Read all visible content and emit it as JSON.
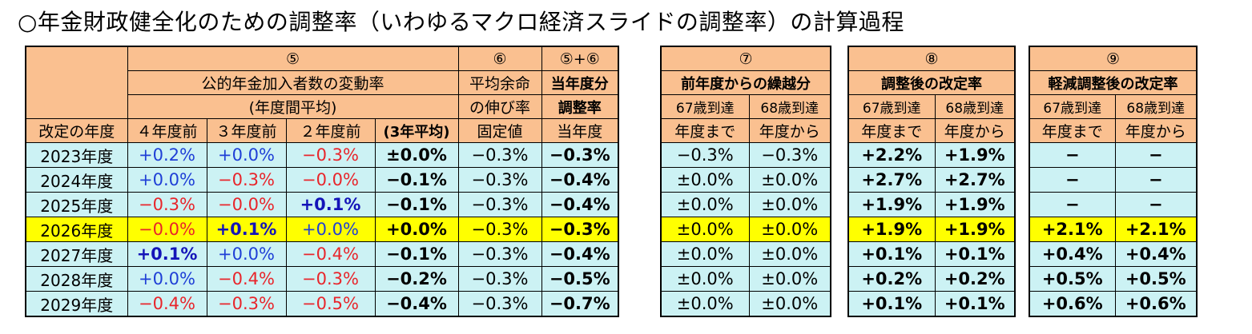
{
  "title": "○年金財政健全化のための調整率（いわゆるマクロ経済スライドの調整率）の計算過程",
  "header": {
    "year_col": "改定の年度",
    "c5": {
      "num": "⑤",
      "line1": "公的年金加入者数の変動率",
      "line2": "(年度間平均)",
      "sub": [
        "４年度前",
        "３年度前",
        "２年度前",
        "(3年平均)"
      ]
    },
    "c6": {
      "num": "⑥",
      "line1": "平均余命",
      "line2": "の伸び率",
      "sub": "固定値"
    },
    "c56": {
      "num": "⑤+⑥",
      "line1": "当年度分",
      "line2": "調整率",
      "sub": "当年度"
    },
    "c7": {
      "num": "⑦",
      "line1": "前年度からの繰越分",
      "sub_top": [
        "67歳到達",
        "68歳到達"
      ],
      "sub_bottom": [
        "年度まで",
        "年度から"
      ]
    },
    "c8": {
      "num": "⑧",
      "line1": "調整後の改定率",
      "sub_top": [
        "67歳到達",
        "68歳到達"
      ],
      "sub_bottom": [
        "年度まで",
        "年度から"
      ]
    },
    "c9": {
      "num": "⑨",
      "line1": "軽減調整後の改定率",
      "sub_top": [
        "67歳到達",
        "68歳到達"
      ],
      "sub_bottom": [
        "年度まで",
        "年度から"
      ]
    }
  },
  "rows": [
    {
      "year": "2023年度",
      "y4": "+0.2%",
      "y3": "+0.0%",
      "y2": "−0.3%",
      "avg": "±0.0%",
      "life": "−0.3%",
      "adj": "−0.3%",
      "c7a": "−0.3%",
      "c7b": "−0.3%",
      "c8a": "+2.2%",
      "c8b": "+1.9%",
      "c9a": "−",
      "c9b": "−"
    },
    {
      "year": "2024年度",
      "y4": "+0.0%",
      "y3": "−0.3%",
      "y2": "−0.0%",
      "avg": "−0.1%",
      "life": "−0.3%",
      "adj": "−0.4%",
      "c7a": "±0.0%",
      "c7b": "±0.0%",
      "c8a": "+2.7%",
      "c8b": "+2.7%",
      "c9a": "−",
      "c9b": "−"
    },
    {
      "year": "2025年度",
      "y4": "−0.3%",
      "y3": "−0.0%",
      "y2": "+0.1%",
      "avg": "−0.1%",
      "life": "−0.3%",
      "adj": "−0.4%",
      "c7a": "±0.0%",
      "c7b": "±0.0%",
      "c8a": "+1.9%",
      "c8b": "+1.9%",
      "c9a": "−",
      "c9b": "−"
    },
    {
      "year": "2026年度",
      "y4": "−0.0%",
      "y3": "+0.1%",
      "y2": "+0.0%",
      "avg": "+0.0%",
      "life": "−0.3%",
      "adj": "−0.3%",
      "c7a": "±0.0%",
      "c7b": "±0.0%",
      "c8a": "+1.9%",
      "c8b": "+1.9%",
      "c9a": "+2.1%",
      "c9b": "+2.1%"
    },
    {
      "year": "2027年度",
      "y4": "+0.1%",
      "y3": "+0.0%",
      "y2": "−0.4%",
      "avg": "−0.1%",
      "life": "−0.3%",
      "adj": "−0.4%",
      "c7a": "±0.0%",
      "c7b": "±0.0%",
      "c8a": "+0.1%",
      "c8b": "+0.1%",
      "c9a": "+0.4%",
      "c9b": "+0.4%"
    },
    {
      "year": "2028年度",
      "y4": "+0.0%",
      "y3": "−0.4%",
      "y2": "−0.3%",
      "avg": "−0.2%",
      "life": "−0.3%",
      "adj": "−0.5%",
      "c7a": "±0.0%",
      "c7b": "±0.0%",
      "c8a": "+0.2%",
      "c8b": "+0.2%",
      "c9a": "+0.5%",
      "c9b": "+0.5%"
    },
    {
      "year": "2029年度",
      "y4": "−0.4%",
      "y3": "−0.3%",
      "y2": "−0.5%",
      "avg": "−0.4%",
      "life": "−0.3%",
      "adj": "−0.7%",
      "c7a": "±0.0%",
      "c7b": "±0.0%",
      "c8a": "+0.1%",
      "c8b": "+0.1%",
      "c9a": "+0.6%",
      "c9b": "+0.6%"
    }
  ],
  "highlight_year": "2026年度",
  "colors": {
    "header": "#fac090",
    "cell": "#ccf2f4",
    "highlight": "#ffff00",
    "positive": "#1f3fd6",
    "negative": "#e8252b"
  }
}
